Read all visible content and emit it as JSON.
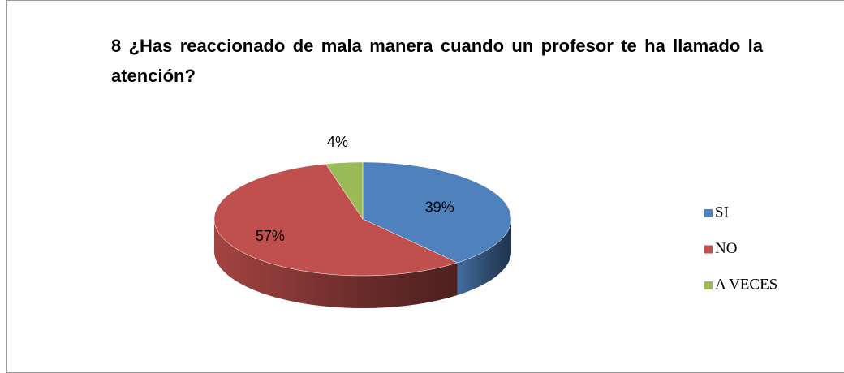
{
  "chart_data": {
    "type": "pie",
    "title": "8 ¿Has reaccionado de mala manera cuando un profesor te ha llamado la atención?",
    "categories": [
      "SI",
      "NO",
      "A VECES"
    ],
    "values": [
      39,
      57,
      4
    ],
    "value_labels": [
      "39%",
      "57%",
      "4%"
    ],
    "colors": [
      "#4f81bd",
      "#c0504d",
      "#9bbb59"
    ],
    "legend": "right"
  }
}
